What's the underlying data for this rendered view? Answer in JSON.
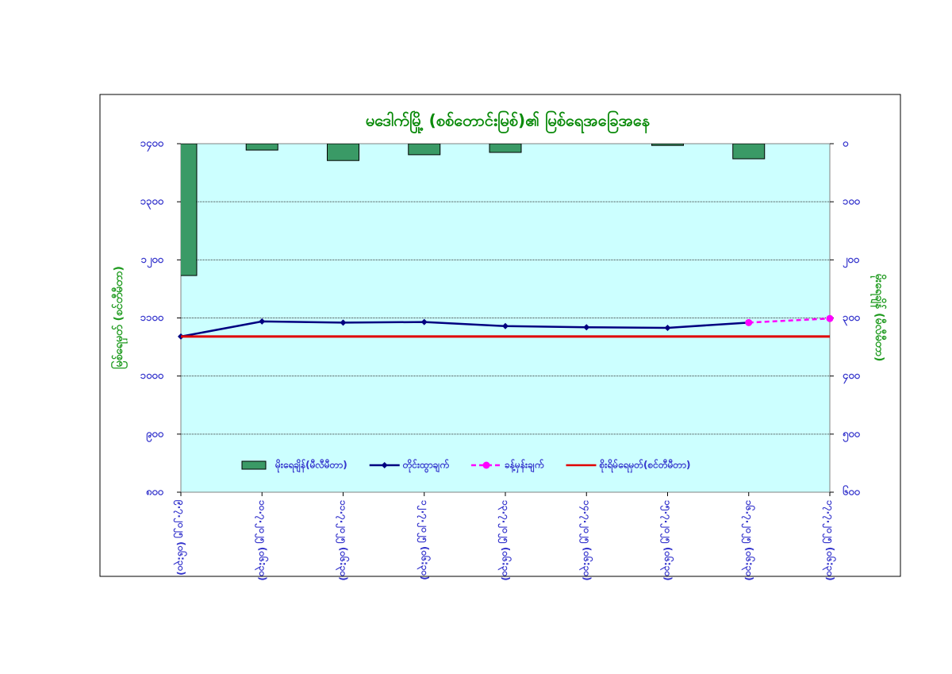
{
  "chart_data": {
    "type": "combo",
    "title": "မဒေါက်မြို့ (စစ်တောင်းမြစ်)၏ မြစ်ရေအခြေအနေ",
    "ylabel": "မြစ်ရေမှတ် (စင်တီမီတာ)",
    "y2label": "မိုးရေချိန် (မီလီမီတာ)",
    "categories": [
      "၉.၇.၂၀၂၅ (၀၆:၃၀)",
      "၁၀.၇.၂၀၂၅ (၀၆:၃၀)",
      "၁၁.၇.၂၀၂၅ (၀၆:၃၀)",
      "၁၂.၇.၂၀၂၅ (၀၆:၃၀)",
      "၁၃.၇.၂၀၂၅ (၀၆:၃၀)",
      "၁၄.၇.၂၀၂၅ (၀၆:၃၀)",
      "၁၅.၇.၂၀၂၅ (၀၆:၃၀)",
      "၁၆.၇.၂၀၂၅ (၀၆:၃၀)",
      "၁၇.၇.၂၀၂၅ (၀၆:၃၀)"
    ],
    "ylim": [
      800,
      1400
    ],
    "yticks": [
      {
        "value": 800,
        "label": "၈၀၀"
      },
      {
        "value": 900,
        "label": "၉၀၀"
      },
      {
        "value": 1000,
        "label": "၁၀၀၀"
      },
      {
        "value": 1100,
        "label": "၁၁၀၀"
      },
      {
        "value": 1200,
        "label": "၁၂၀၀"
      },
      {
        "value": 1300,
        "label": "၁၃၀၀"
      },
      {
        "value": 1400,
        "label": "၁၄၀၀"
      }
    ],
    "y2lim": [
      0,
      600
    ],
    "y2_inverted": true,
    "y2ticks": [
      {
        "value": 0,
        "label": "၀"
      },
      {
        "value": 100,
        "label": "၁၀၀"
      },
      {
        "value": 200,
        "label": "၂၀၀"
      },
      {
        "value": 300,
        "label": "၃၀၀"
      },
      {
        "value": 400,
        "label": "၄၀၀"
      },
      {
        "value": 500,
        "label": "၅၀၀"
      },
      {
        "value": 600,
        "label": "၆၀၀"
      }
    ],
    "grid": true,
    "legend": "bottom",
    "series": [
      {
        "name": "မိုးရေချိန်(မီလီမီတာ)",
        "type": "bar",
        "axis": "y2",
        "color": "#3a9a66",
        "values": [
          227,
          11,
          29,
          19,
          15,
          0,
          3,
          26,
          0
        ]
      },
      {
        "name": "တိုင်းထွာချက်",
        "type": "line",
        "marker": "diamond",
        "color": "#000080",
        "values": [
          1068,
          1094,
          1092,
          1093,
          1086,
          1084,
          1083,
          1092,
          null
        ]
      },
      {
        "name": "ခန့်မှန်းချက်",
        "type": "line",
        "marker": "circle",
        "dashed": true,
        "color": "#ff00ff",
        "values": [
          null,
          null,
          null,
          null,
          null,
          null,
          null,
          1092,
          1099
        ]
      },
      {
        "name": "စိုးရိမ်ရေမှတ်(စင်တီမီတာ)",
        "type": "line",
        "color": "#e00000",
        "values": [
          1068,
          1068,
          1068,
          1068,
          1068,
          1068,
          1068,
          1068,
          1068
        ]
      }
    ]
  }
}
